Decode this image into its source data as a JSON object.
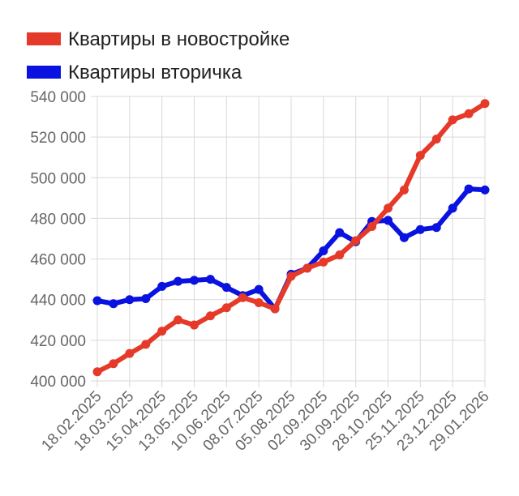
{
  "chart_data": {
    "type": "line",
    "title": "",
    "xlabel": "",
    "ylabel": "",
    "legend_position": "top-left",
    "grid": true,
    "ylim": [
      400000,
      540000
    ],
    "y_ticks": [
      "400 000",
      "420 000",
      "440 000",
      "460 000",
      "480 000",
      "500 000",
      "520 000",
      "540 000"
    ],
    "x_tick_labels": [
      "18.02.2025",
      "18.03.2025",
      "15.04.2025",
      "13.05.2025",
      "10.06.2025",
      "08.07.2025",
      "05.08.2025",
      "02.09.2025",
      "30.09.2025",
      "28.10.2025",
      "25.11.2025",
      "23.12.2025",
      "29.01.2026"
    ],
    "x_tick_every": 2,
    "point_count": 25,
    "series": [
      {
        "name": "Квартиры в новостройке",
        "color": "#e53a2a",
        "values": [
          404500,
          408500,
          413500,
          418000,
          424500,
          430000,
          427500,
          432000,
          436000,
          441000,
          438500,
          435500,
          451500,
          455500,
          458500,
          462000,
          469000,
          476000,
          485000,
          494000,
          511000,
          519000,
          528500,
          531500,
          536500
        ]
      },
      {
        "name": "Квартиры вторичка",
        "color": "#0a12e0",
        "values": [
          439500,
          438000,
          440000,
          440500,
          446500,
          449000,
          449500,
          450000,
          446000,
          442000,
          445000,
          435500,
          452500,
          455500,
          464000,
          473000,
          468500,
          478500,
          479000,
          470500,
          474500,
          475500,
          485000,
          494500,
          494000
        ]
      }
    ]
  }
}
